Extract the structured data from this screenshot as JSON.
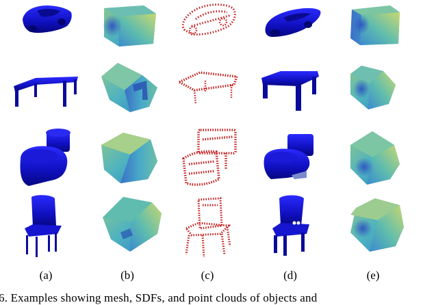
{
  "figure": {
    "column_labels": [
      "(a)",
      "(b)",
      "(c)",
      "(d)",
      "(e)"
    ],
    "rows": [
      "car",
      "table",
      "toilet",
      "chair"
    ],
    "caption": "6.  Examples showing mesh, SDFs, and point clouds of objects and",
    "colors": {
      "mesh": "#1010c8",
      "mesh_dark": "#050570",
      "points": "#c41818",
      "sdf_yellow": "#c8d870",
      "sdf_teal": "#58b8b8",
      "sdf_blue": "#3a78c8"
    }
  }
}
